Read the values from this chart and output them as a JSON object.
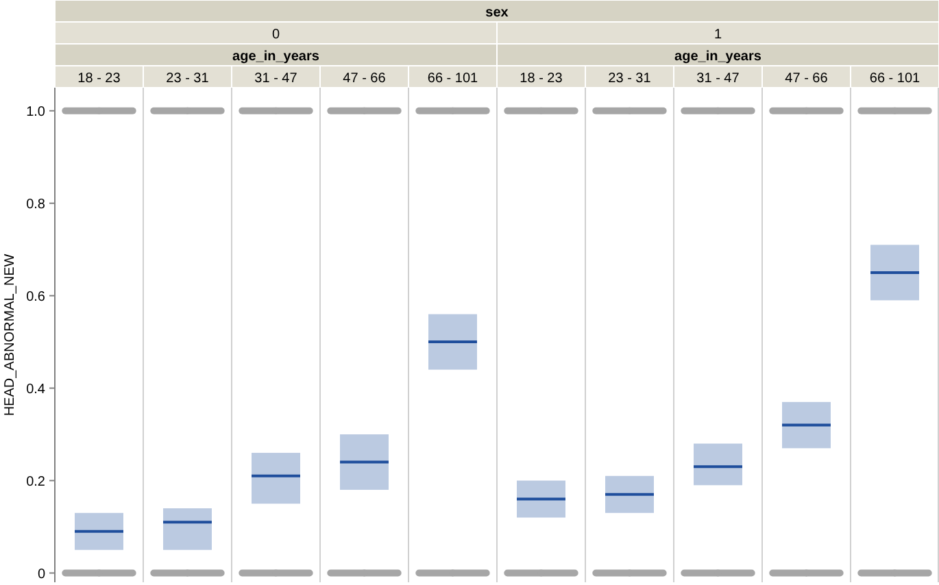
{
  "chart_data": {
    "type": "box",
    "ylabel": "HEAD_ABNORMAL_NEW",
    "categories": [
      "18 - 23",
      "23 - 31",
      "31 - 47",
      "47 - 66",
      "66 - 101",
      "18 - 23",
      "23 - 31",
      "31 - 47",
      "47 - 66",
      "66 - 101"
    ],
    "annotations": [
      "sex",
      "0",
      "1",
      "age_in_years",
      "age_in_years"
    ],
    "series": [
      {
        "color": "#1f4e9c",
        "boxes": [
          {
            "low": 0.05,
            "q1": 0.05,
            "median": 0.09,
            "q3": 0.13,
            "high": 0.13,
            "outliers": [
              0,
              1
            ]
          },
          {
            "low": 0.05,
            "q1": 0.05,
            "median": 0.11,
            "q3": 0.14,
            "high": 0.14,
            "outliers": [
              0,
              1
            ]
          },
          {
            "low": 0.15,
            "q1": 0.15,
            "median": 0.21,
            "q3": 0.26,
            "high": 0.26,
            "outliers": [
              0,
              1
            ]
          },
          {
            "low": 0.18,
            "q1": 0.18,
            "median": 0.24,
            "q3": 0.3,
            "high": 0.3,
            "outliers": [
              0,
              1
            ]
          },
          {
            "low": 0.44,
            "q1": 0.44,
            "median": 0.5,
            "q3": 0.56,
            "high": 0.56,
            "outliers": [
              0,
              1
            ]
          },
          {
            "low": 0.12,
            "q1": 0.12,
            "median": 0.16,
            "q3": 0.2,
            "high": 0.2,
            "outliers": [
              0,
              1
            ]
          },
          {
            "low": 0.13,
            "q1": 0.13,
            "median": 0.17,
            "q3": 0.21,
            "high": 0.21,
            "outliers": [
              0,
              1
            ]
          },
          {
            "low": 0.19,
            "q1": 0.19,
            "median": 0.23,
            "q3": 0.28,
            "high": 0.28,
            "outliers": [
              0,
              1
            ]
          },
          {
            "low": 0.27,
            "q1": 0.27,
            "median": 0.32,
            "q3": 0.37,
            "high": 0.37,
            "outliers": [
              0,
              1
            ]
          },
          {
            "low": 0.59,
            "q1": 0.59,
            "median": 0.65,
            "q3": 0.71,
            "high": 0.71,
            "outliers": [
              0,
              1
            ]
          }
        ]
      }
    ],
    "grid": "x",
    "ylim": [
      -0.02,
      1.05
    ],
    "yticks": [
      0,
      0.2,
      0.4,
      0.6,
      0.8,
      {
        "value": 1,
        "label": "1.0"
      }
    ]
  }
}
